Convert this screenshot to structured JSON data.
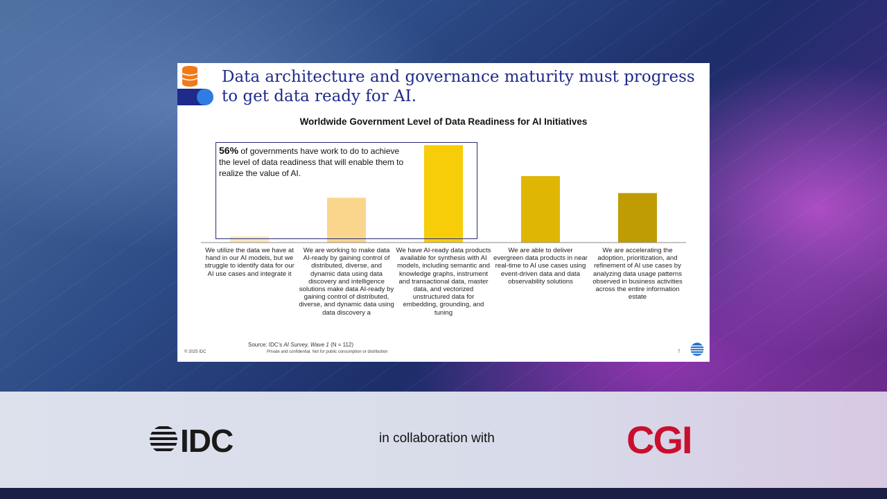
{
  "slide": {
    "title": "Data architecture and governance maturity must progress to get data ready for AI.",
    "callout_percent": "56%",
    "callout_text": " of governments have work to do to achieve the level of data readiness that will enable them to realize the value of AI.",
    "source_prefix": "Source: IDC's ",
    "source_italic": "AI Survey, Wave 1",
    "source_suffix": " (N = 112)",
    "copyright": "© 2025 IDC",
    "private_note": "Private and confidential. Not for public consumption or distribution",
    "page_number": "7"
  },
  "chart_data": {
    "type": "bar",
    "title": "Worldwide Government Level of Data Readiness for AI Initiatives",
    "categories": [
      "We utilize the data we have at hand in our AI models, but we struggle to identify data for our AI use cases and integrate it",
      "We are working to make data AI-ready by gaining control of distributed, diverse, and dynamic data using data discovery and intelligence solutions make data AI-ready by gaining control of distributed, diverse, and dynamic data using data discovery a",
      "We have AI-ready data products available for synthesis with AI models, including semantic and knowledge graphs, instrument and transactional data, master data, and vectorized unstructured data for embedding, grounding, and tuning",
      "We are able to deliver evergreen data products in near real-time to AI use cases using event-driven data and data observability solutions",
      "We are accelerating the adoption, prioritization, and refinement of AI use cases by analyzing data usage patterns observed in business activities across the entire information estate"
    ],
    "values": [
      4,
      29,
      63,
      43,
      32
    ],
    "ylim": [
      0,
      65
    ],
    "colors": [
      "#fbe7c0",
      "#fad58c",
      "#f6cd08",
      "#e0b605",
      "#bf9c03"
    ],
    "grid": false
  },
  "footer": {
    "idc_logo_text": "IDC",
    "collab_text": "in collaboration with",
    "cgi_logo_text": "CGI"
  },
  "colors": {
    "title": "#1f2a8a",
    "cgi_red": "#c8102e"
  }
}
